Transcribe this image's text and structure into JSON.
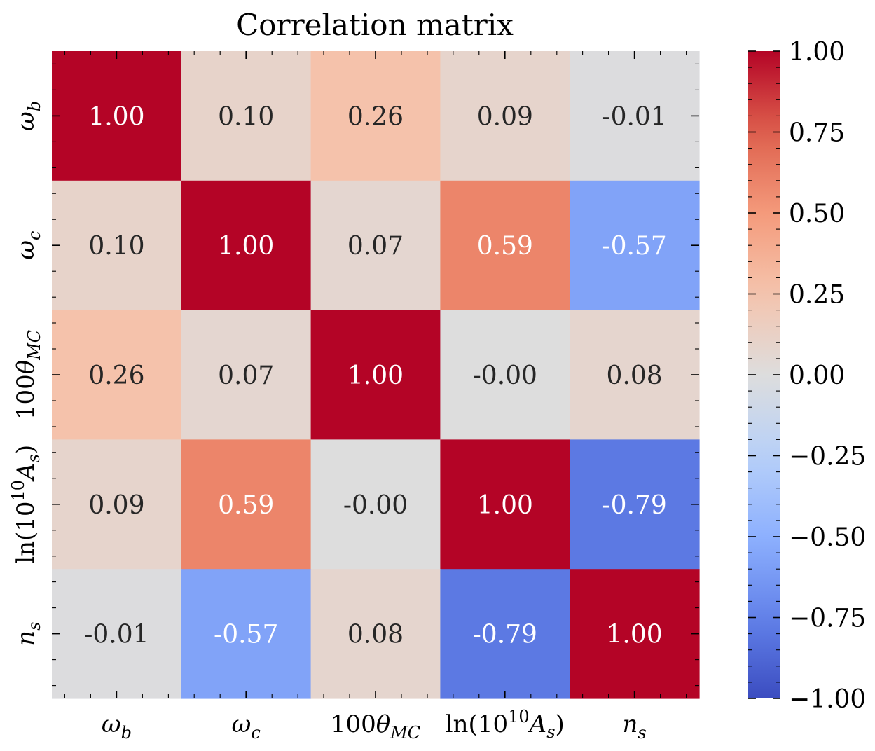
{
  "chart_data": {
    "type": "heatmap",
    "title": "Correlation matrix",
    "xlabel": "",
    "ylabel": "",
    "x_labels": [
      "ω_b",
      "ω_c",
      "100θ_MC",
      "ln(10^10 A_s)",
      "n_s"
    ],
    "y_labels": [
      "ω_b",
      "ω_c",
      "100θ_MC",
      "ln(10^10 A_s)",
      "n_s"
    ],
    "values": [
      [
        1.0,
        0.1,
        0.26,
        0.09,
        -0.01
      ],
      [
        0.1,
        1.0,
        0.07,
        0.59,
        -0.57
      ],
      [
        0.26,
        0.07,
        1.0,
        -0.0,
        0.08
      ],
      [
        0.09,
        0.59,
        -0.0,
        1.0,
        -0.79
      ],
      [
        -0.01,
        -0.57,
        0.08,
        -0.79,
        1.0
      ]
    ],
    "cell_labels": [
      [
        "1.00",
        "0.10",
        "0.26",
        "0.09",
        "-0.01"
      ],
      [
        "0.10",
        "1.00",
        "0.07",
        "0.59",
        "-0.57"
      ],
      [
        "0.26",
        "0.07",
        "1.00",
        "-0.00",
        "0.08"
      ],
      [
        "0.09",
        "0.59",
        "-0.00",
        "1.00",
        "-0.79"
      ],
      [
        "-0.01",
        "-0.57",
        "0.08",
        "-0.79",
        "1.00"
      ]
    ],
    "colormap": "coolwarm",
    "vmin": -1.0,
    "vmax": 1.0,
    "colorbar_ticks": [
      1.0,
      0.75,
      0.5,
      0.25,
      0.0,
      -0.25,
      -0.5,
      -0.75,
      -1.0
    ],
    "colorbar_tick_labels": [
      "1.00",
      "0.75",
      "0.50",
      "0.25",
      "0.00",
      "−0.25",
      "−0.50",
      "−0.75",
      "−1.00"
    ],
    "colors": {
      "low": "#3b4cc0",
      "mid": "#dddddd",
      "high": "#b40426"
    },
    "grid": false
  }
}
